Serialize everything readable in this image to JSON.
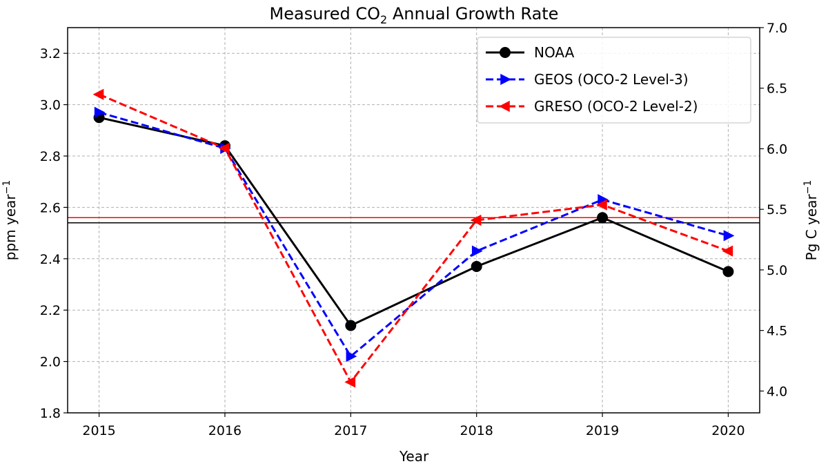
{
  "chart_data": {
    "type": "line",
    "title": {
      "main": "Measured CO",
      "sub": "2",
      "rest": " Annual Growth Rate"
    },
    "xlabel": "Year",
    "ylabel": {
      "main": "ppm year",
      "sup": "−1"
    },
    "ylabel_right": {
      "main": "Pg C year",
      "sup": "−1"
    },
    "x": [
      2015,
      2016,
      2017,
      2018,
      2019,
      2020
    ],
    "xlim": [
      2014.75,
      2020.25
    ],
    "ylim": [
      1.8,
      3.3
    ],
    "ylim_right": [
      3.82,
      7.0
    ],
    "yticks": [
      "1.8",
      "2.0",
      "2.2",
      "2.4",
      "2.6",
      "2.8",
      "3.0",
      "3.2"
    ],
    "yticks_right": [
      "4.0",
      "4.5",
      "5.0",
      "5.5",
      "6.0",
      "6.5",
      "7.0"
    ],
    "grid": true,
    "legend_position": "top-right",
    "series": [
      {
        "name": "NOAA",
        "values": [
          2.95,
          2.84,
          2.14,
          2.37,
          2.56,
          2.35
        ],
        "color": "#000000",
        "dash": "solid",
        "marker": "circle"
      },
      {
        "name": "GEOS (OCO-2 Level-3)",
        "values": [
          2.97,
          2.83,
          2.02,
          2.43,
          2.63,
          2.49
        ],
        "color": "#0000ff",
        "dash": "dashed",
        "marker": "triangle-right"
      },
      {
        "name": "GRESO (OCO-2 Level-2)",
        "values": [
          3.04,
          2.83,
          1.92,
          2.55,
          2.61,
          2.43
        ],
        "color": "#ff0000",
        "dash": "dashed",
        "marker": "triangle-left"
      }
    ],
    "reference_lines": [
      {
        "value": 2.56,
        "color": "#0000ff"
      },
      {
        "value": 2.56,
        "color": "#ff0000"
      },
      {
        "value": 2.54,
        "color": "#000000"
      }
    ]
  }
}
